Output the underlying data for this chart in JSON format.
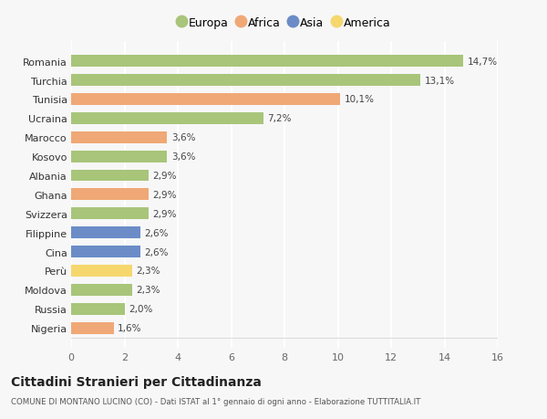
{
  "countries": [
    "Romania",
    "Turchia",
    "Tunisia",
    "Ucraina",
    "Marocco",
    "Kosovo",
    "Albania",
    "Ghana",
    "Svizzera",
    "Filippine",
    "Cina",
    "Perù",
    "Moldova",
    "Russia",
    "Nigeria"
  ],
  "values": [
    14.7,
    13.1,
    10.1,
    7.2,
    3.6,
    3.6,
    2.9,
    2.9,
    2.9,
    2.6,
    2.6,
    2.3,
    2.3,
    2.0,
    1.6
  ],
  "labels": [
    "14,7%",
    "13,1%",
    "10,1%",
    "7,2%",
    "3,6%",
    "3,6%",
    "2,9%",
    "2,9%",
    "2,9%",
    "2,6%",
    "2,6%",
    "2,3%",
    "2,3%",
    "2,0%",
    "1,6%"
  ],
  "continent": [
    "Europa",
    "Europa",
    "Africa",
    "Europa",
    "Africa",
    "Europa",
    "Europa",
    "Africa",
    "Europa",
    "Asia",
    "Asia",
    "America",
    "Europa",
    "Europa",
    "Africa"
  ],
  "colors": {
    "Europa": "#a8c57a",
    "Africa": "#f0a876",
    "Asia": "#6b8cc7",
    "America": "#f5d76e"
  },
  "legend_order": [
    "Europa",
    "Africa",
    "Asia",
    "America"
  ],
  "title": "Cittadini Stranieri per Cittadinanza",
  "subtitle": "COMUNE DI MONTANO LUCINO (CO) - Dati ISTAT al 1° gennaio di ogni anno - Elaborazione TUTTITALIA.IT",
  "xlim": [
    0,
    16
  ],
  "xticks": [
    0,
    2,
    4,
    6,
    8,
    10,
    12,
    14,
    16
  ],
  "bg_color": "#f7f7f7",
  "grid_color": "#ffffff"
}
